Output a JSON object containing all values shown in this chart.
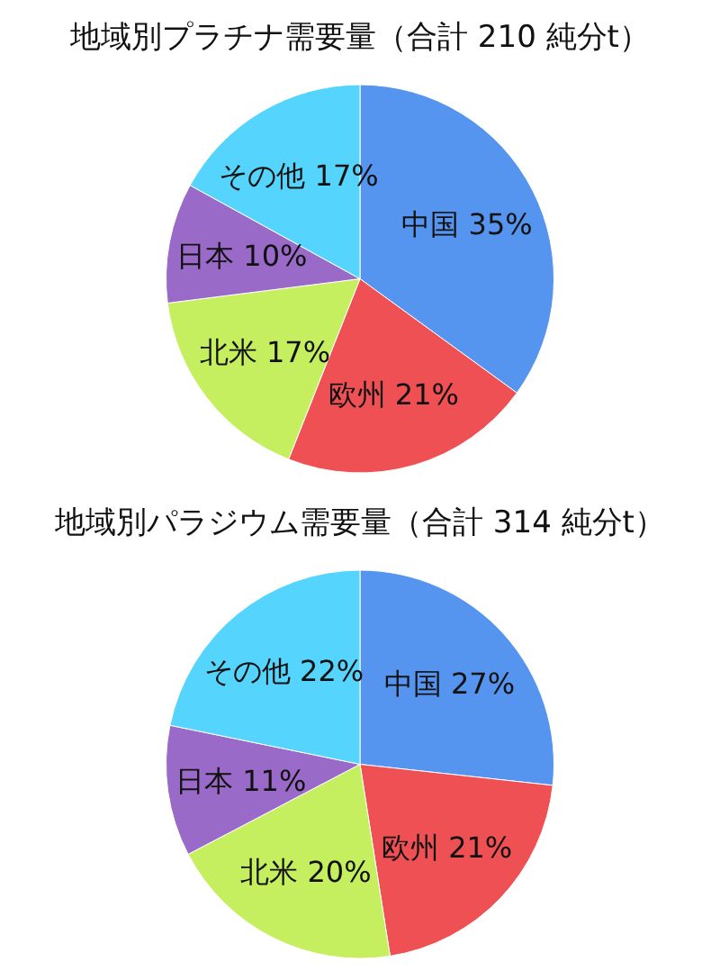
{
  "chart_data": [
    {
      "type": "pie",
      "title": "地域別プラチナ需要量（合計 210 純分t）",
      "categories": [
        "中国",
        "欧州",
        "北米",
        "日本",
        "その他"
      ],
      "values": [
        35,
        21,
        17,
        10,
        17
      ],
      "value_labels": [
        "35%",
        "21%",
        "17%",
        "10%",
        "17%"
      ],
      "colors": [
        "#5595ef",
        "#ef5054",
        "#c5ef5e",
        "#9a6ac9",
        "#55d5fd"
      ]
    },
    {
      "type": "pie",
      "title": "地域別パラジウム需要量（合計 314 純分t）",
      "categories": [
        "中国",
        "欧州",
        "北米",
        "日本",
        "その他"
      ],
      "values": [
        27,
        21,
        20,
        11,
        22
      ],
      "value_labels": [
        "27%",
        "21%",
        "20%",
        "11%",
        "22%"
      ],
      "colors": [
        "#5595ef",
        "#ef5054",
        "#c5ef5e",
        "#9a6ac9",
        "#55d5fd"
      ]
    }
  ]
}
